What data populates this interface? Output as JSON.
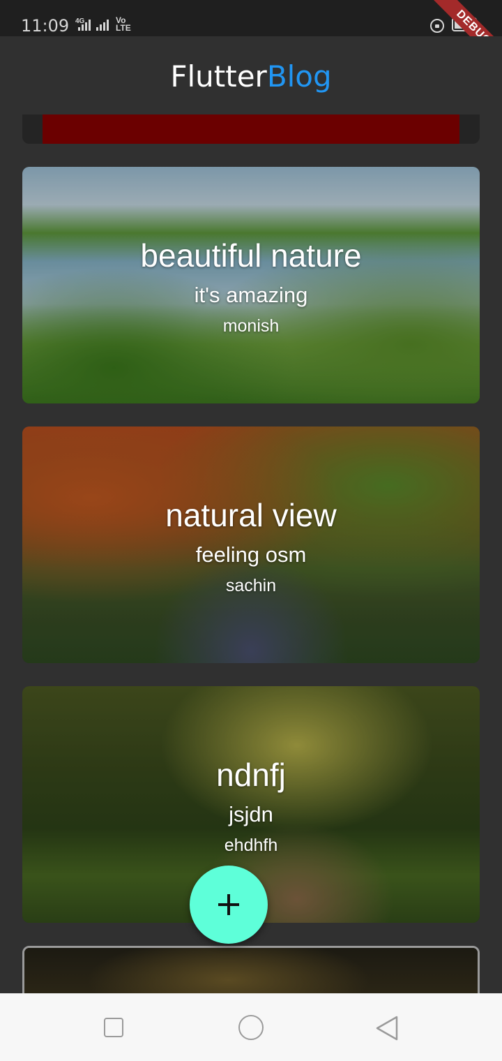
{
  "status_bar": {
    "time": "11:09",
    "network": "4G",
    "volte_line1": "Vo",
    "volte_line2": "LTE",
    "icons": [
      "signal-icon",
      "signal-icon",
      "lock-rotation-icon",
      "battery-icon"
    ]
  },
  "debug_banner": "DEBUG",
  "app_bar": {
    "title_part1": "Flutter",
    "title_part2": "Blog",
    "title_color1": "#ffffff",
    "title_color2": "#2196f3"
  },
  "posts": [
    {
      "title": "beautiful nature",
      "description": "it's amazing",
      "author": "monish"
    },
    {
      "title": "natural view",
      "description": "feeling osm",
      "author": "sachin"
    },
    {
      "title": "ndnfj",
      "description": "jsjdn",
      "author": "ehdhfh"
    }
  ],
  "fab": {
    "icon": "plus-icon",
    "color": "#5effd9"
  },
  "nav_bar": {
    "buttons": [
      "recent-apps-icon",
      "home-icon",
      "back-icon"
    ]
  }
}
